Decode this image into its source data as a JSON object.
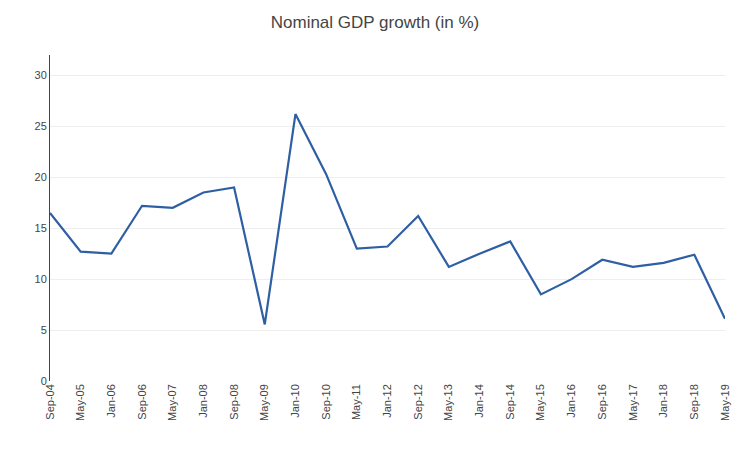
{
  "chart_data": {
    "type": "line",
    "title": "Nominal GDP growth (in %)",
    "categories": [
      "Sep-04",
      "May-05",
      "Jan-06",
      "Sep-06",
      "May-07",
      "Jan-08",
      "Sep-08",
      "May-09",
      "Jan-10",
      "Sep-10",
      "May-11",
      "Jan-12",
      "Sep-12",
      "May-13",
      "Jan-14",
      "Sep-14",
      "May-15",
      "Jan-16",
      "Sep-16",
      "May-17",
      "Jan-18",
      "Sep-18",
      "May-19"
    ],
    "values": [
      16.5,
      12.7,
      12.5,
      17.2,
      17.0,
      18.5,
      19.0,
      5.55,
      26.2,
      20.3,
      13.0,
      13.2,
      16.2,
      11.2,
      12.5,
      13.7,
      8.5,
      10.0,
      11.9,
      11.2,
      11.6,
      12.4,
      6.1
    ],
    "color": "#2E5FA3",
    "ylim": [
      0,
      32
    ],
    "yticks": [
      0,
      5,
      10,
      15,
      20,
      25,
      30
    ],
    "grid": true
  }
}
